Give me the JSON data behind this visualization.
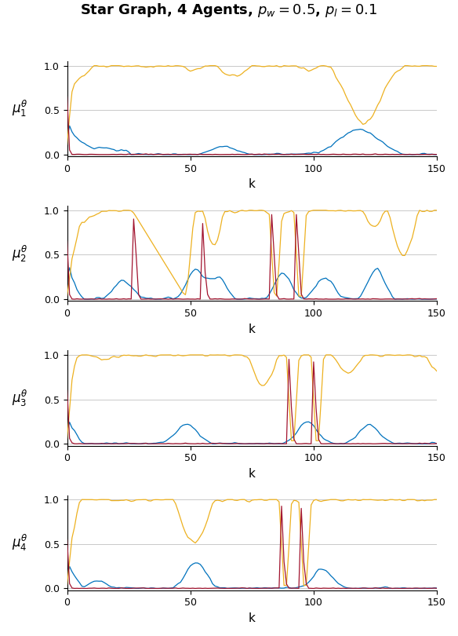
{
  "title": "Star Graph, 4 Agents, $p_w = 0.5$, $p_l = 0.1$",
  "n_agents": 4,
  "n_steps": 151,
  "xlim": [
    0,
    150
  ],
  "ylim": [
    -0.02,
    1.05
  ],
  "yticks": [
    0,
    0.5,
    1
  ],
  "xticks": [
    0,
    50,
    100,
    150
  ],
  "xlabel": "k",
  "line_colors": [
    "#0072BD",
    "#EDB120",
    "#A2142F"
  ],
  "line_width": 0.9,
  "bg_color": "#FFFFFF",
  "grid_color": "#C0C0C0",
  "title_fontsize": 13,
  "axis_label_fontsize": 11,
  "tick_fontsize": 9
}
